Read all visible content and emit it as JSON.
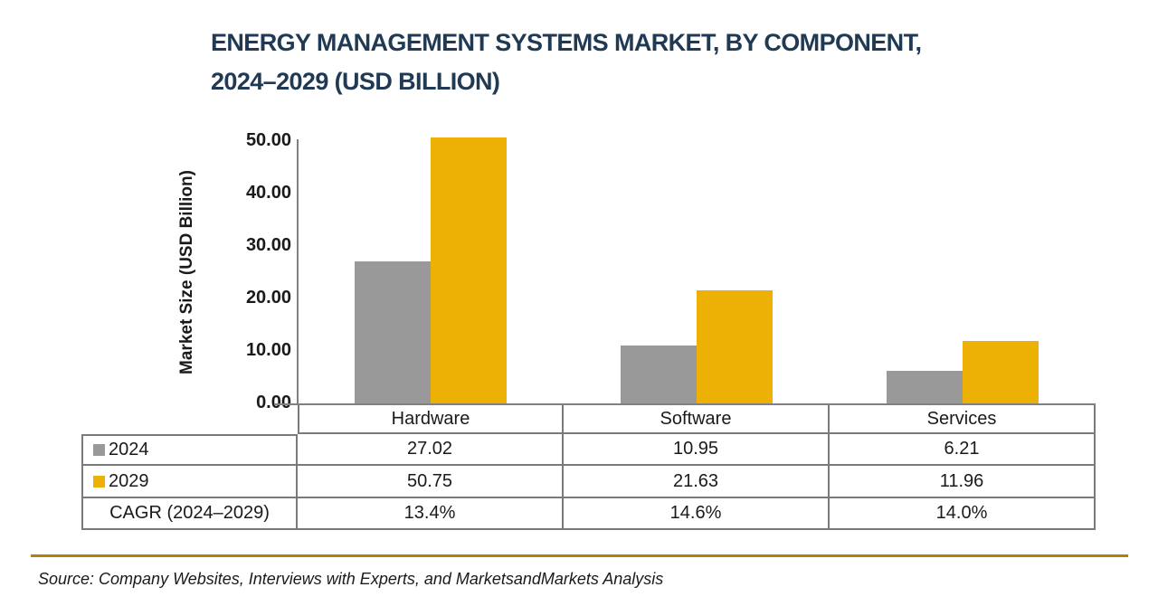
{
  "title": {
    "line1": "ENERGY MANAGEMENT SYSTEMS MARKET, BY COMPONENT,",
    "line2": "2024–2029 (USD BILLION)"
  },
  "source_note": "Source: Company Websites, Interviews with Experts, and MarketsandMarkets Analysis",
  "colors": {
    "series_2024": "#999999",
    "series_2029": "#EDB005",
    "title_text": "#203A54",
    "axis_line": "#808080",
    "table_border": "#7A7A7A",
    "divider_gold": "#A98502"
  },
  "chart_data": {
    "type": "bar",
    "title": "ENERGY MANAGEMENT SYSTEMS MARKET, BY COMPONENT, 2024–2029 (USD BILLION)",
    "categories": [
      "Hardware",
      "Software",
      "Services"
    ],
    "series": [
      {
        "name": "2024",
        "color_key": "series_2024",
        "values": [
          27.02,
          10.95,
          6.21
        ]
      },
      {
        "name": "2029",
        "color_key": "series_2029",
        "values": [
          50.75,
          21.63,
          11.96
        ]
      }
    ],
    "cagr_row": {
      "label": "CAGR (2024–2029)",
      "values": [
        "13.4%",
        "14.6%",
        "14.0%"
      ]
    },
    "xlabel": "",
    "ylabel": "Market Size (USD Billion)",
    "ylim": [
      0,
      50
    ],
    "ytick_step": 10,
    "ytick_labels": [
      "0.00",
      "10.00",
      "20.00",
      "30.00",
      "40.00",
      "50.00"
    ],
    "grid": false,
    "legend_position": "table-left"
  }
}
